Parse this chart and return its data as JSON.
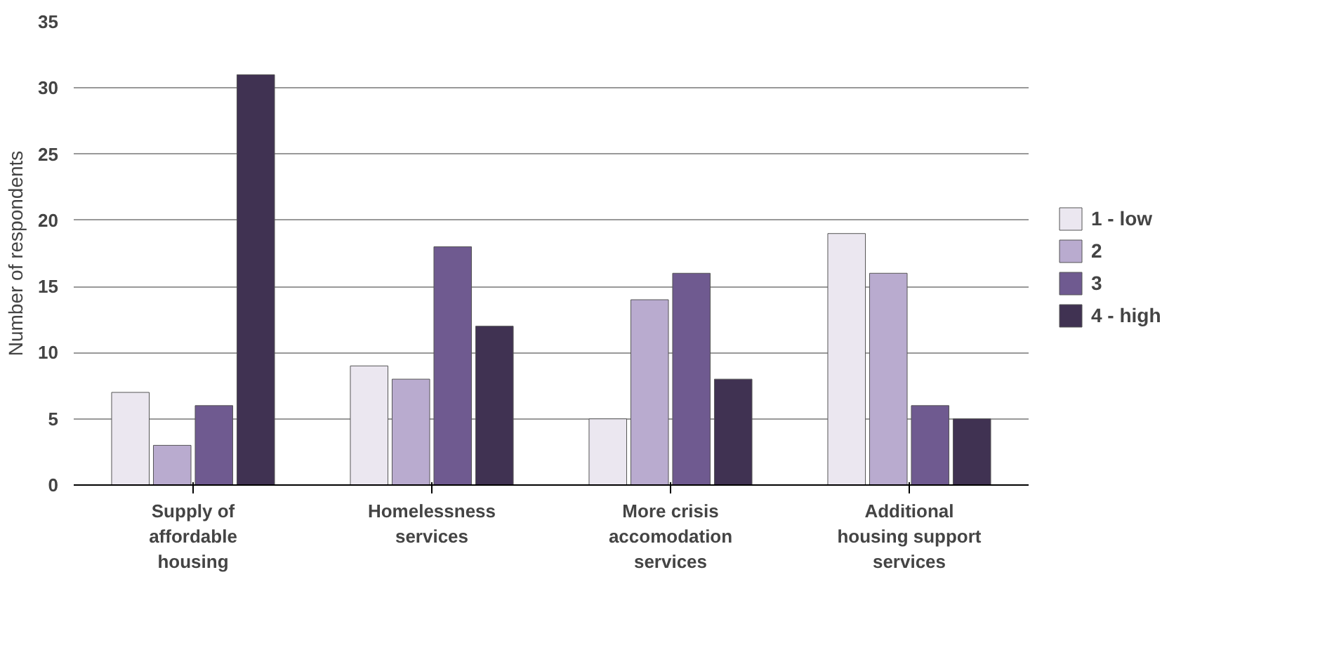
{
  "chart_data": {
    "type": "bar",
    "ylabel": "Number of respondents",
    "categories": [
      "Supply of affordable housing",
      "Homelessness services",
      "More crisis accomodation services",
      "Additional housing support services"
    ],
    "series": [
      {
        "name": "1 - low",
        "color": "#ebe7f0",
        "values": [
          7,
          9,
          5,
          19
        ]
      },
      {
        "name": "2",
        "color": "#b9abcf",
        "values": [
          3,
          8,
          14,
          16
        ]
      },
      {
        "name": "3",
        "color": "#6f5a90",
        "values": [
          6,
          18,
          16,
          6
        ]
      },
      {
        "name": "4 - high",
        "color": "#403252",
        "values": [
          31,
          12,
          8,
          5
        ]
      }
    ],
    "ylim": [
      0,
      35
    ],
    "yticks": [
      0,
      5,
      10,
      15,
      20,
      25,
      30,
      35
    ],
    "grid": "y",
    "legend": "right"
  }
}
